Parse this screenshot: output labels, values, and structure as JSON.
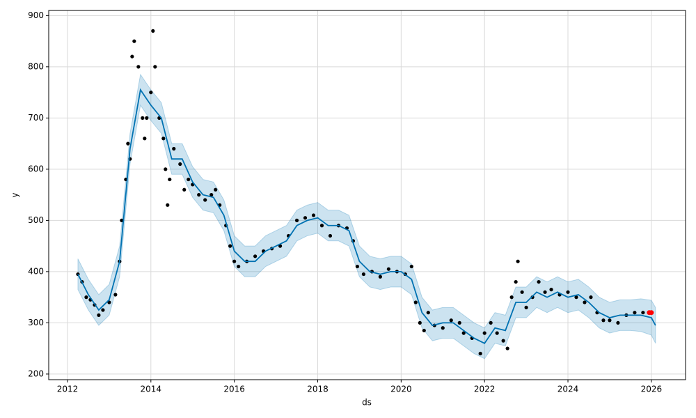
{
  "chart_data": {
    "type": "line",
    "xlabel": "ds",
    "ylabel": "y",
    "xlim": [
      2011.55,
      2026.82
    ],
    "ylim": [
      189,
      910
    ],
    "xticks": [
      2012,
      2014,
      2016,
      2018,
      2020,
      2022,
      2024,
      2026
    ],
    "yticks": [
      200,
      300,
      400,
      500,
      600,
      700,
      800,
      900
    ],
    "grid": true,
    "forecast": {
      "color": "#0072B2",
      "band_color": "#0072B2",
      "x": [
        2012.25,
        2012.5,
        2012.75,
        2013.0,
        2013.25,
        2013.5,
        2013.75,
        2014.0,
        2014.25,
        2014.5,
        2014.75,
        2015.0,
        2015.25,
        2015.5,
        2015.75,
        2016.0,
        2016.25,
        2016.5,
        2016.75,
        2017.0,
        2017.25,
        2017.5,
        2017.75,
        2018.0,
        2018.25,
        2018.5,
        2018.75,
        2019.0,
        2019.25,
        2019.5,
        2019.75,
        2020.0,
        2020.25,
        2020.5,
        2020.75,
        2021.0,
        2021.25,
        2021.5,
        2021.75,
        2022.0,
        2022.25,
        2022.5,
        2022.75,
        2023.0,
        2023.25,
        2023.5,
        2023.75,
        2024.0,
        2024.25,
        2024.5,
        2024.75,
        2025.0,
        2025.25,
        2025.5,
        2025.75,
        2026.0,
        2026.1
      ],
      "y": [
        395,
        355,
        325,
        345,
        420,
        640,
        755,
        725,
        700,
        620,
        620,
        575,
        550,
        545,
        510,
        440,
        420,
        420,
        440,
        450,
        460,
        490,
        500,
        505,
        490,
        490,
        480,
        420,
        400,
        395,
        400,
        400,
        385,
        320,
        295,
        300,
        300,
        285,
        270,
        260,
        290,
        285,
        340,
        340,
        360,
        350,
        360,
        350,
        355,
        340,
        320,
        310,
        315,
        315,
        315,
        310,
        295
      ],
      "lower": [
        365,
        325,
        295,
        315,
        390,
        610,
        725,
        695,
        670,
        590,
        590,
        545,
        520,
        515,
        480,
        410,
        390,
        390,
        410,
        420,
        430,
        460,
        470,
        475,
        460,
        460,
        450,
        390,
        370,
        365,
        370,
        370,
        355,
        290,
        265,
        270,
        270,
        255,
        240,
        230,
        260,
        255,
        310,
        310,
        330,
        320,
        330,
        320,
        325,
        310,
        290,
        280,
        285,
        285,
        283,
        276,
        260
      ],
      "upper": [
        425,
        385,
        355,
        375,
        450,
        670,
        785,
        755,
        730,
        650,
        650,
        605,
        580,
        575,
        540,
        470,
        450,
        450,
        470,
        480,
        490,
        520,
        530,
        535,
        520,
        520,
        510,
        450,
        430,
        425,
        430,
        430,
        415,
        350,
        325,
        330,
        330,
        315,
        300,
        290,
        320,
        315,
        370,
        370,
        390,
        380,
        390,
        380,
        385,
        370,
        350,
        340,
        345,
        345,
        347,
        344,
        330
      ]
    },
    "observed": {
      "color": "#000000",
      "x": [
        2012.25,
        2012.35,
        2012.45,
        2012.55,
        2012.65,
        2012.75,
        2012.85,
        2013.0,
        2013.15,
        2013.25,
        2013.3,
        2013.4,
        2013.45,
        2013.5,
        2013.55,
        2013.6,
        2013.7,
        2013.8,
        2013.85,
        2013.9,
        2014.0,
        2014.05,
        2014.1,
        2014.2,
        2014.3,
        2014.35,
        2014.4,
        2014.45,
        2014.55,
        2014.7,
        2014.8,
        2014.9,
        2015.0,
        2015.15,
        2015.3,
        2015.45,
        2015.55,
        2015.65,
        2015.8,
        2015.9,
        2016.0,
        2016.1,
        2016.3,
        2016.5,
        2016.7,
        2016.9,
        2017.1,
        2017.3,
        2017.5,
        2017.7,
        2017.9,
        2018.1,
        2018.3,
        2018.5,
        2018.7,
        2018.85,
        2018.95,
        2019.1,
        2019.3,
        2019.5,
        2019.7,
        2019.9,
        2020.1,
        2020.25,
        2020.35,
        2020.45,
        2020.55,
        2020.65,
        2020.8,
        2021.0,
        2021.2,
        2021.4,
        2021.5,
        2021.7,
        2021.9,
        2022.0,
        2022.15,
        2022.3,
        2022.45,
        2022.55,
        2022.65,
        2022.75,
        2022.8,
        2022.9,
        2023.0,
        2023.15,
        2023.3,
        2023.45,
        2023.6,
        2023.8,
        2024.0,
        2024.2,
        2024.4,
        2024.55,
        2024.7,
        2024.85,
        2025.0,
        2025.2,
        2025.4,
        2025.6,
        2025.8
      ],
      "y": [
        395,
        380,
        350,
        345,
        335,
        315,
        325,
        340,
        355,
        420,
        500,
        580,
        650,
        620,
        820,
        850,
        800,
        700,
        660,
        700,
        750,
        870,
        800,
        700,
        660,
        600,
        530,
        580,
        640,
        610,
        560,
        580,
        570,
        550,
        540,
        550,
        560,
        530,
        490,
        450,
        420,
        410,
        420,
        430,
        440,
        445,
        450,
        470,
        500,
        505,
        510,
        490,
        470,
        490,
        485,
        460,
        410,
        395,
        400,
        390,
        405,
        400,
        395,
        410,
        340,
        300,
        285,
        320,
        295,
        290,
        305,
        300,
        280,
        270,
        240,
        280,
        300,
        280,
        265,
        250,
        350,
        380,
        420,
        360,
        330,
        350,
        380,
        360,
        365,
        355,
        360,
        350,
        340,
        350,
        320,
        305,
        305,
        300,
        315,
        320,
        320
      ]
    },
    "recent": {
      "color": "#ff0000",
      "x": [
        2025.95,
        2026.0
      ],
      "y": [
        320,
        320
      ]
    }
  }
}
